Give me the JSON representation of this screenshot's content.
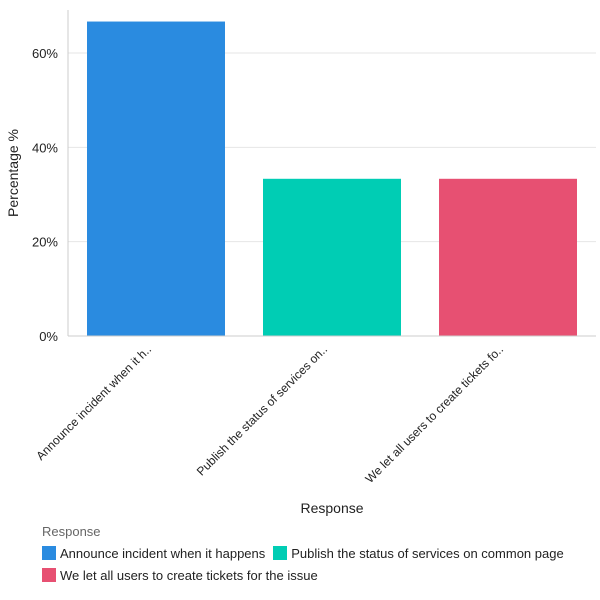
{
  "chart_data": {
    "type": "bar",
    "title": "",
    "xlabel": "Response",
    "ylabel": "Percentage %",
    "ylim": [
      0,
      69
    ],
    "yticks": [
      0,
      20,
      40,
      60
    ],
    "ytick_labels": [
      "0%",
      "20%",
      "40%",
      "60%"
    ],
    "grid": true,
    "legend_position": "bottom",
    "categories": [
      "Announce incident when it happens",
      "Publish the status of services on common page",
      "We let all users to create tickets for the issue"
    ],
    "category_tick_labels": [
      "Announce incident when it h..",
      "Publish the status of services on..",
      "We let all users to create tickets fo.."
    ],
    "values": [
      66.67,
      33.33,
      33.33
    ],
    "colors": [
      "#2a8be0",
      "#00cdb4",
      "#e75072"
    ]
  },
  "legend": {
    "title": "Response",
    "items": [
      {
        "label": "Announce incident when it happens",
        "color": "#2a8be0"
      },
      {
        "label": "Publish the status of services on common page",
        "color": "#00cdb4"
      },
      {
        "label": "We let all users to create tickets for the issue",
        "color": "#e75072"
      }
    ]
  }
}
